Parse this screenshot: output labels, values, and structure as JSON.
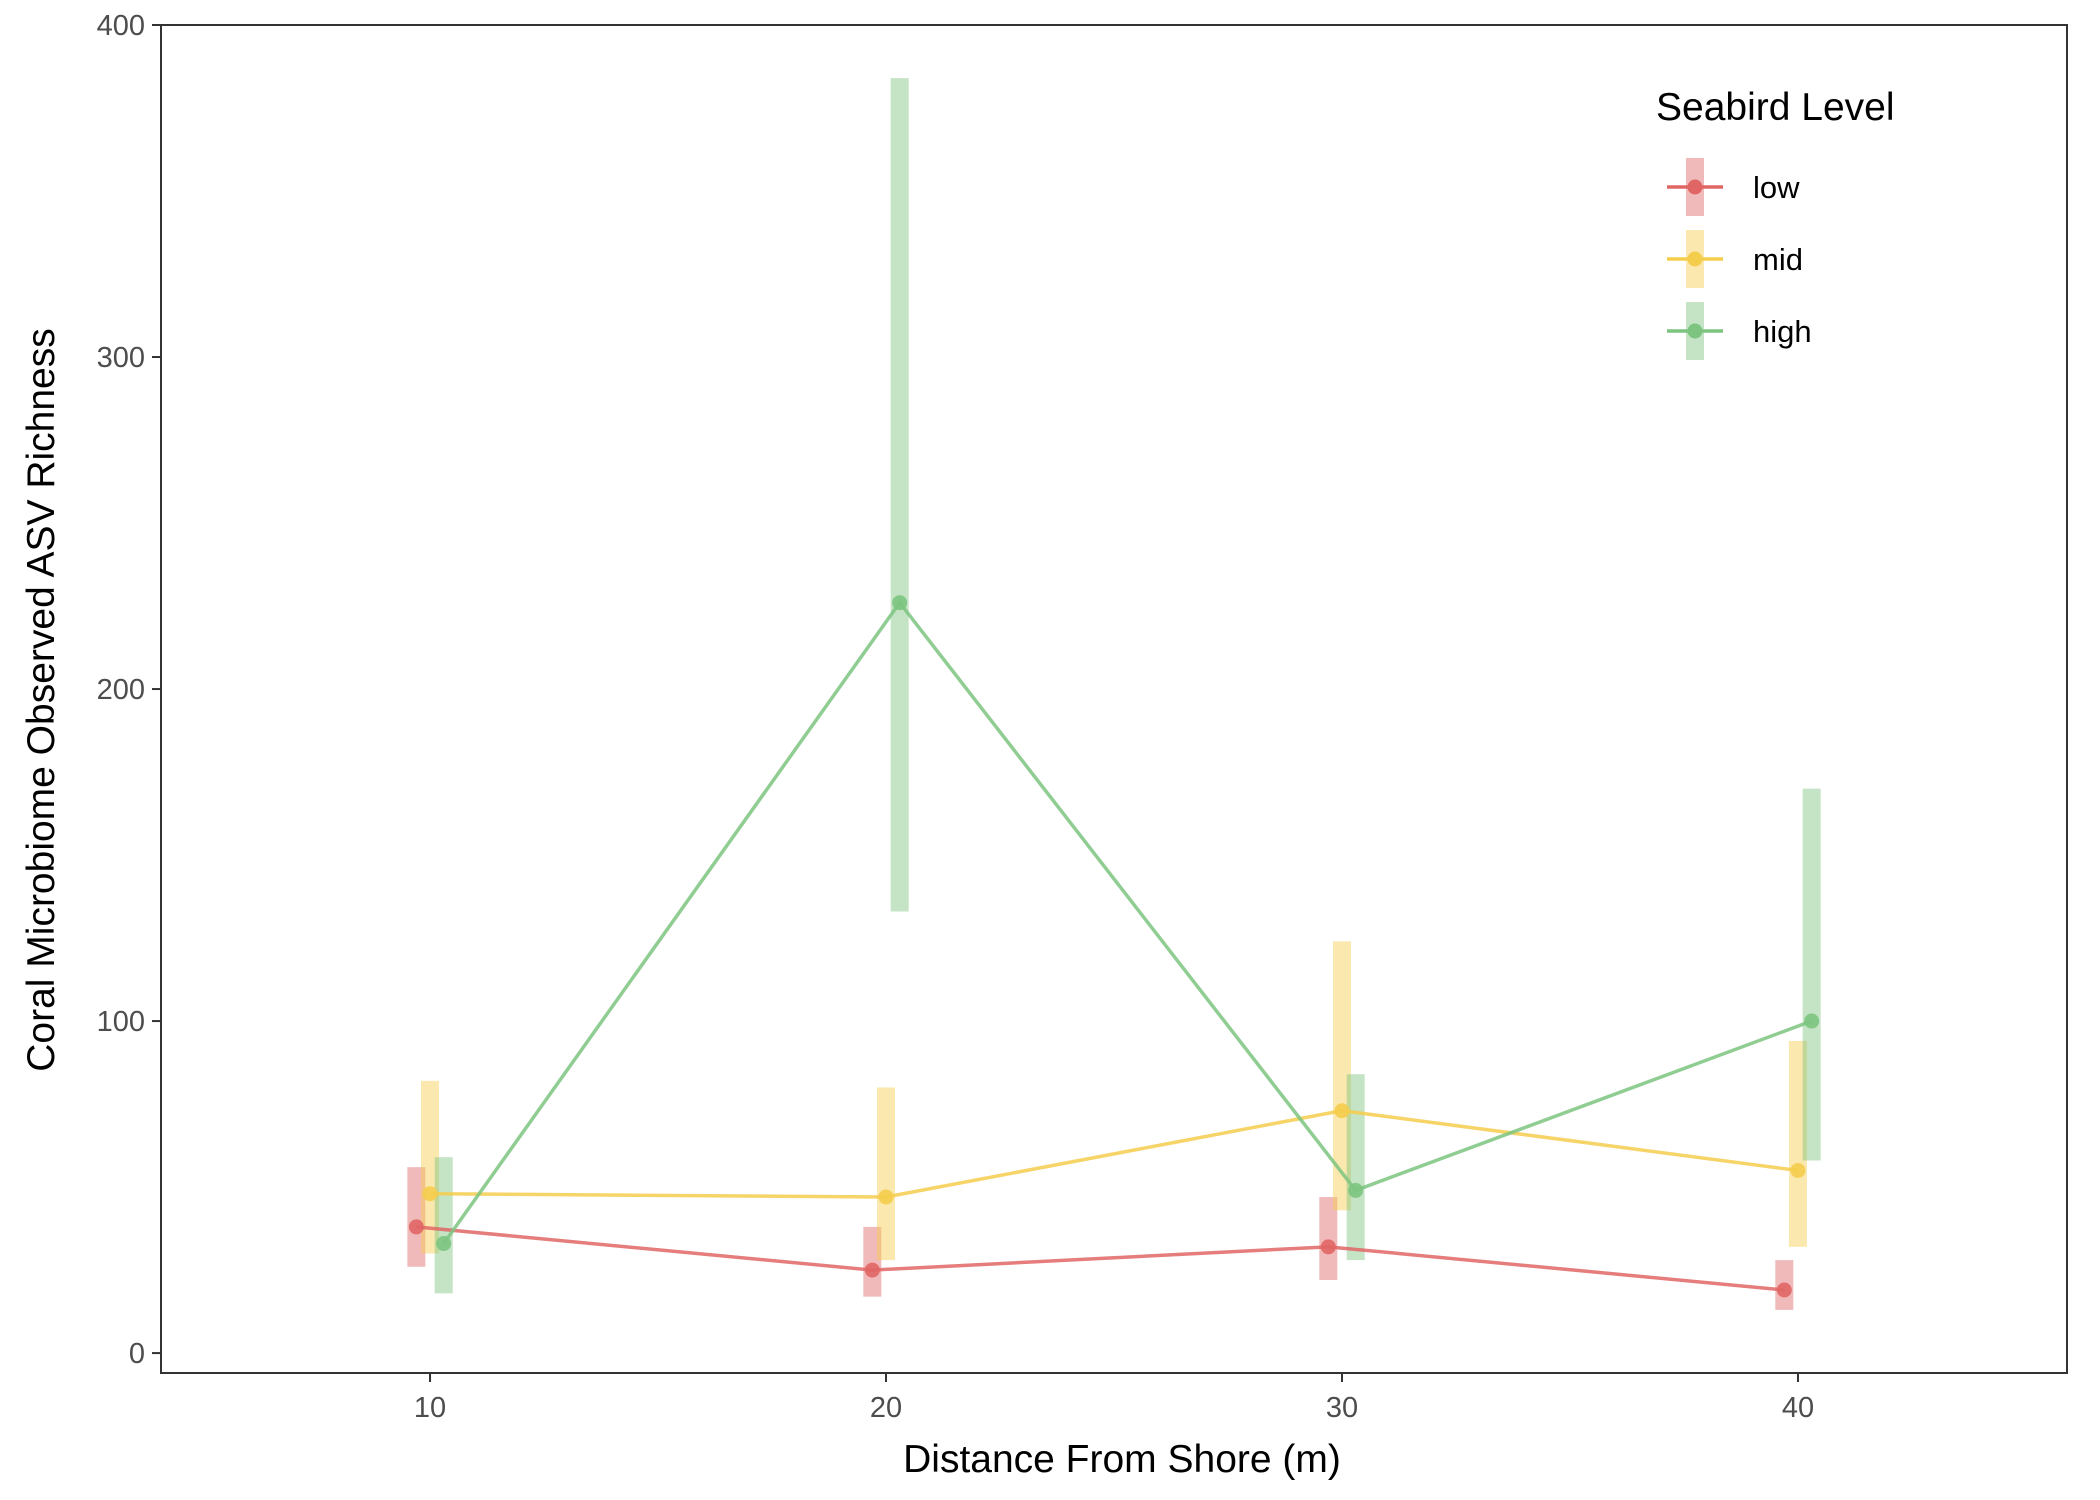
{
  "chart_data": {
    "type": "line",
    "title": "",
    "xlabel": "Distance From Shore (m)",
    "ylabel": "Coral Microbiome Observed ASV Richness",
    "x": [
      10,
      20,
      30,
      40
    ],
    "x_ticks": [
      "10",
      "20",
      "30",
      "40"
    ],
    "y_ticks": [
      "0",
      "100",
      "200",
      "300",
      "400"
    ],
    "xlim": [
      4.1,
      45.9
    ],
    "ylim": [
      -6,
      400
    ],
    "grid": false,
    "legend": {
      "title": "Seabird Level",
      "placement": "top-right"
    },
    "series": [
      {
        "name": "low",
        "color": "#e06666",
        "offset": -0.3,
        "values": [
          38,
          25,
          32,
          19
        ],
        "lower": [
          26,
          17,
          22,
          13
        ],
        "upper": [
          56,
          38,
          47,
          28
        ]
      },
      {
        "name": "mid",
        "color": "#f5cd4d",
        "offset": 0,
        "values": [
          48,
          47,
          73,
          55
        ],
        "lower": [
          30,
          28,
          43,
          32
        ],
        "upper": [
          82,
          80,
          124,
          94
        ]
      },
      {
        "name": "high",
        "color": "#7cc47f",
        "offset": 0.3,
        "values": [
          33,
          226,
          49,
          100
        ],
        "lower": [
          18,
          133,
          28,
          58
        ],
        "upper": [
          59,
          384,
          84,
          170
        ]
      }
    ]
  }
}
